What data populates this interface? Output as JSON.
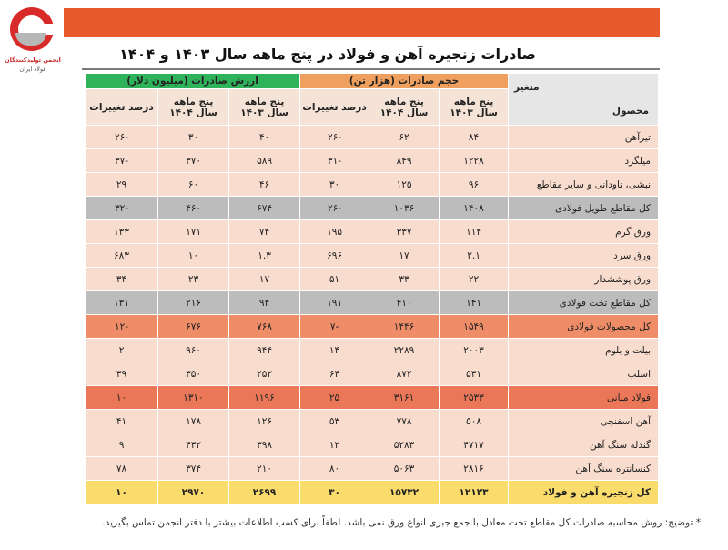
{
  "logo": {
    "line1": "انجمن تولیدکنندگان",
    "line2": "فولاد ایران"
  },
  "title": "صادرات زنجیره آهن و فولاد در پنج ماهه سال ۱۴۰۳ و ۱۴۰۴",
  "header": {
    "variable": "متغیر",
    "product": "محصول",
    "volume_group": "حجم صادرات (هزار تن)",
    "value_group": "ارزش صادرات (میلیون دلار)",
    "col_1403": [
      "پنج ماهه",
      "سال ۱۴۰۳"
    ],
    "col_1404": [
      "پنج ماهه",
      "سال ۱۴۰۴"
    ],
    "change": "درصد تغییرات"
  },
  "rows": [
    {
      "product": "تیرآهن",
      "v1403": "۸۴",
      "v1404": "۶۲",
      "vchg": "-۲۶",
      "p1403": "۴۰",
      "p1404": "۳۰",
      "pchg": "-۲۶",
      "style": "light"
    },
    {
      "product": "میلگرد",
      "v1403": "۱۲۲۸",
      "v1404": "۸۴۹",
      "vchg": "-۳۱",
      "p1403": "۵۸۹",
      "p1404": "۳۷۰",
      "pchg": "-۳۷",
      "style": "light"
    },
    {
      "product": "نبشی، ناودانی و سایر مقاطع",
      "v1403": "۹۶",
      "v1404": "۱۲۵",
      "vchg": "۳۰",
      "p1403": "۴۶",
      "p1404": "۶۰",
      "pchg": "۲۹",
      "style": "light"
    },
    {
      "product": "کل مقاطع طویل فولادی",
      "v1403": "۱۴۰۸",
      "v1404": "۱۰۳۶",
      "vchg": "-۲۶",
      "p1403": "۶۷۴",
      "p1404": "۴۶۰",
      "pchg": "-۳۲",
      "style": "gray"
    },
    {
      "product": "ورق گرم",
      "v1403": "۱۱۴",
      "v1404": "۳۳۷",
      "vchg": "۱۹۵",
      "p1403": "۷۴",
      "p1404": "۱۷۱",
      "pchg": "۱۳۳",
      "style": "light"
    },
    {
      "product": "ورق سرد",
      "v1403": "۲.۱",
      "v1404": "۱۷",
      "vchg": "۶۹۶",
      "p1403": "۱.۳",
      "p1404": "۱۰",
      "pchg": "۶۸۳",
      "style": "light"
    },
    {
      "product": "ورق پوششدار",
      "v1403": "۲۲",
      "v1404": "۳۳",
      "vchg": "۵۱",
      "p1403": "۱۷",
      "p1404": "۲۳",
      "pchg": "۳۴",
      "style": "light"
    },
    {
      "product": "کل مقاطع تخت فولادی",
      "v1403": "۱۴۱",
      "v1404": "۴۱۰",
      "vchg": "۱۹۱",
      "p1403": "۹۴",
      "p1404": "۲۱۶",
      "pchg": "۱۳۱",
      "style": "gray"
    },
    {
      "product": "کل محصولات فولادی",
      "v1403": "۱۵۴۹",
      "v1404": "۱۴۴۶",
      "vchg": "-۷",
      "p1403": "۷۶۸",
      "p1404": "۶۷۶",
      "pchg": "-۱۲",
      "style": "orange"
    },
    {
      "product": "بیلت و بلوم",
      "v1403": "۲۰۰۳",
      "v1404": "۲۲۸۹",
      "vchg": "۱۴",
      "p1403": "۹۴۴",
      "p1404": "۹۶۰",
      "pchg": "۲",
      "style": "light"
    },
    {
      "product": "اسلب",
      "v1403": "۵۳۱",
      "v1404": "۸۷۲",
      "vchg": "۶۴",
      "p1403": "۲۵۲",
      "p1404": "۳۵۰",
      "pchg": "۳۹",
      "style": "light"
    },
    {
      "product": "فولاد میانی",
      "v1403": "۲۵۳۳",
      "v1404": "۳۱۶۱",
      "vchg": "۲۵",
      "p1403": "۱۱۹۶",
      "p1404": "۱۳۱۰",
      "pchg": "۱۰",
      "style": "deep"
    },
    {
      "product": "آهن اسفنجی",
      "v1403": "۵۰۸",
      "v1404": "۷۷۸",
      "vchg": "۵۳",
      "p1403": "۱۲۶",
      "p1404": "۱۷۸",
      "pchg": "۴۱",
      "style": "light"
    },
    {
      "product": "گندله سنگ آهن",
      "v1403": "۴۷۱۷",
      "v1404": "۵۲۸۳",
      "vchg": "۱۲",
      "p1403": "۳۹۸",
      "p1404": "۴۳۲",
      "pchg": "۹",
      "style": "light"
    },
    {
      "product": "کنسانتره سنگ آهن",
      "v1403": "۲۸۱۶",
      "v1404": "۵۰۶۳",
      "vchg": "۸۰",
      "p1403": "۲۱۰",
      "p1404": "۳۷۴",
      "pchg": "۷۸",
      "style": "light"
    },
    {
      "product": "کل زنجیره آهن و فولاد",
      "v1403": "۱۲۱۲۳",
      "v1404": "۱۵۷۳۲",
      "vchg": "۳۰",
      "p1403": "۲۶۹۹",
      "p1404": "۲۹۷۰",
      "pchg": "۱۰",
      "style": "yellow"
    }
  ],
  "note": "* توضیح: روش محاسبه صادرات کل مقاطع تخت معادل با جمع جبری انواع ورق نمی باشد. لطفاً برای کسب اطلاعات بیشتر با دفتر انجمن تماس بگیرید."
}
